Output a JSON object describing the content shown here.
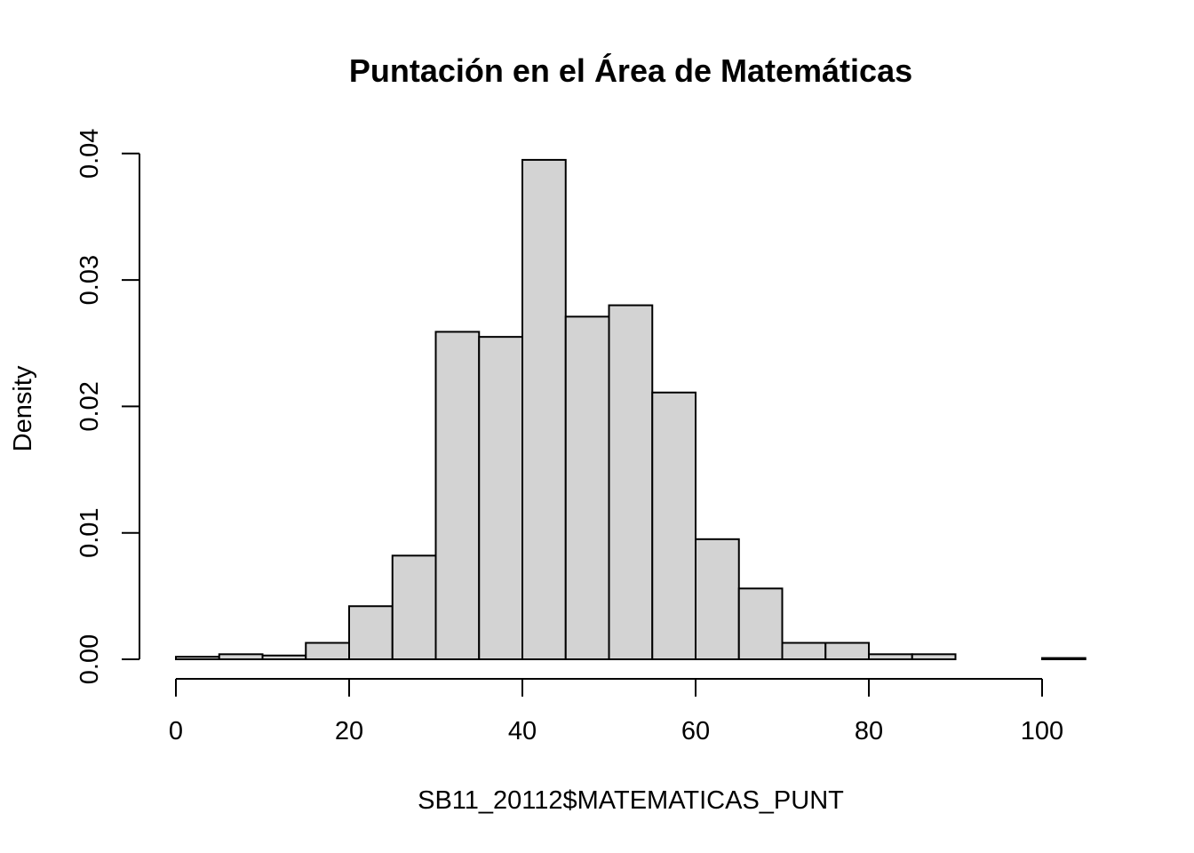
{
  "chart_data": {
    "type": "bar",
    "title": "Puntación en el Área de Matemáticas",
    "xlabel": "SB11_20112$MATEMATICAS_PUNT",
    "ylabel": "Density",
    "bin_edges": [
      0,
      5,
      10,
      15,
      20,
      25,
      30,
      35,
      40,
      45,
      50,
      55,
      60,
      65,
      70,
      75,
      80,
      85,
      90,
      95,
      100,
      105
    ],
    "values": [
      0.0002,
      0.0004,
      0.0003,
      0.0013,
      0.0042,
      0.0082,
      0.0259,
      0.0255,
      0.0395,
      0.0271,
      0.028,
      0.0211,
      0.0095,
      0.0056,
      0.0013,
      0.0013,
      0.0004,
      0.0004,
      0.0,
      0.0,
      0.0001
    ],
    "xlim": [
      0,
      105
    ],
    "ylim": [
      0,
      0.04
    ],
    "x_ticks": [
      0,
      20,
      40,
      60,
      80,
      100
    ],
    "x_tick_labels": [
      "0",
      "20",
      "40",
      "60",
      "80",
      "100"
    ],
    "y_ticks": [
      0,
      0.01,
      0.02,
      0.03,
      0.04
    ],
    "y_tick_labels": [
      "0.00",
      "0.01",
      "0.02",
      "0.03",
      "0.04"
    ],
    "grid": false,
    "bar_color": "#d3d3d3",
    "edge_color": "#000000"
  }
}
